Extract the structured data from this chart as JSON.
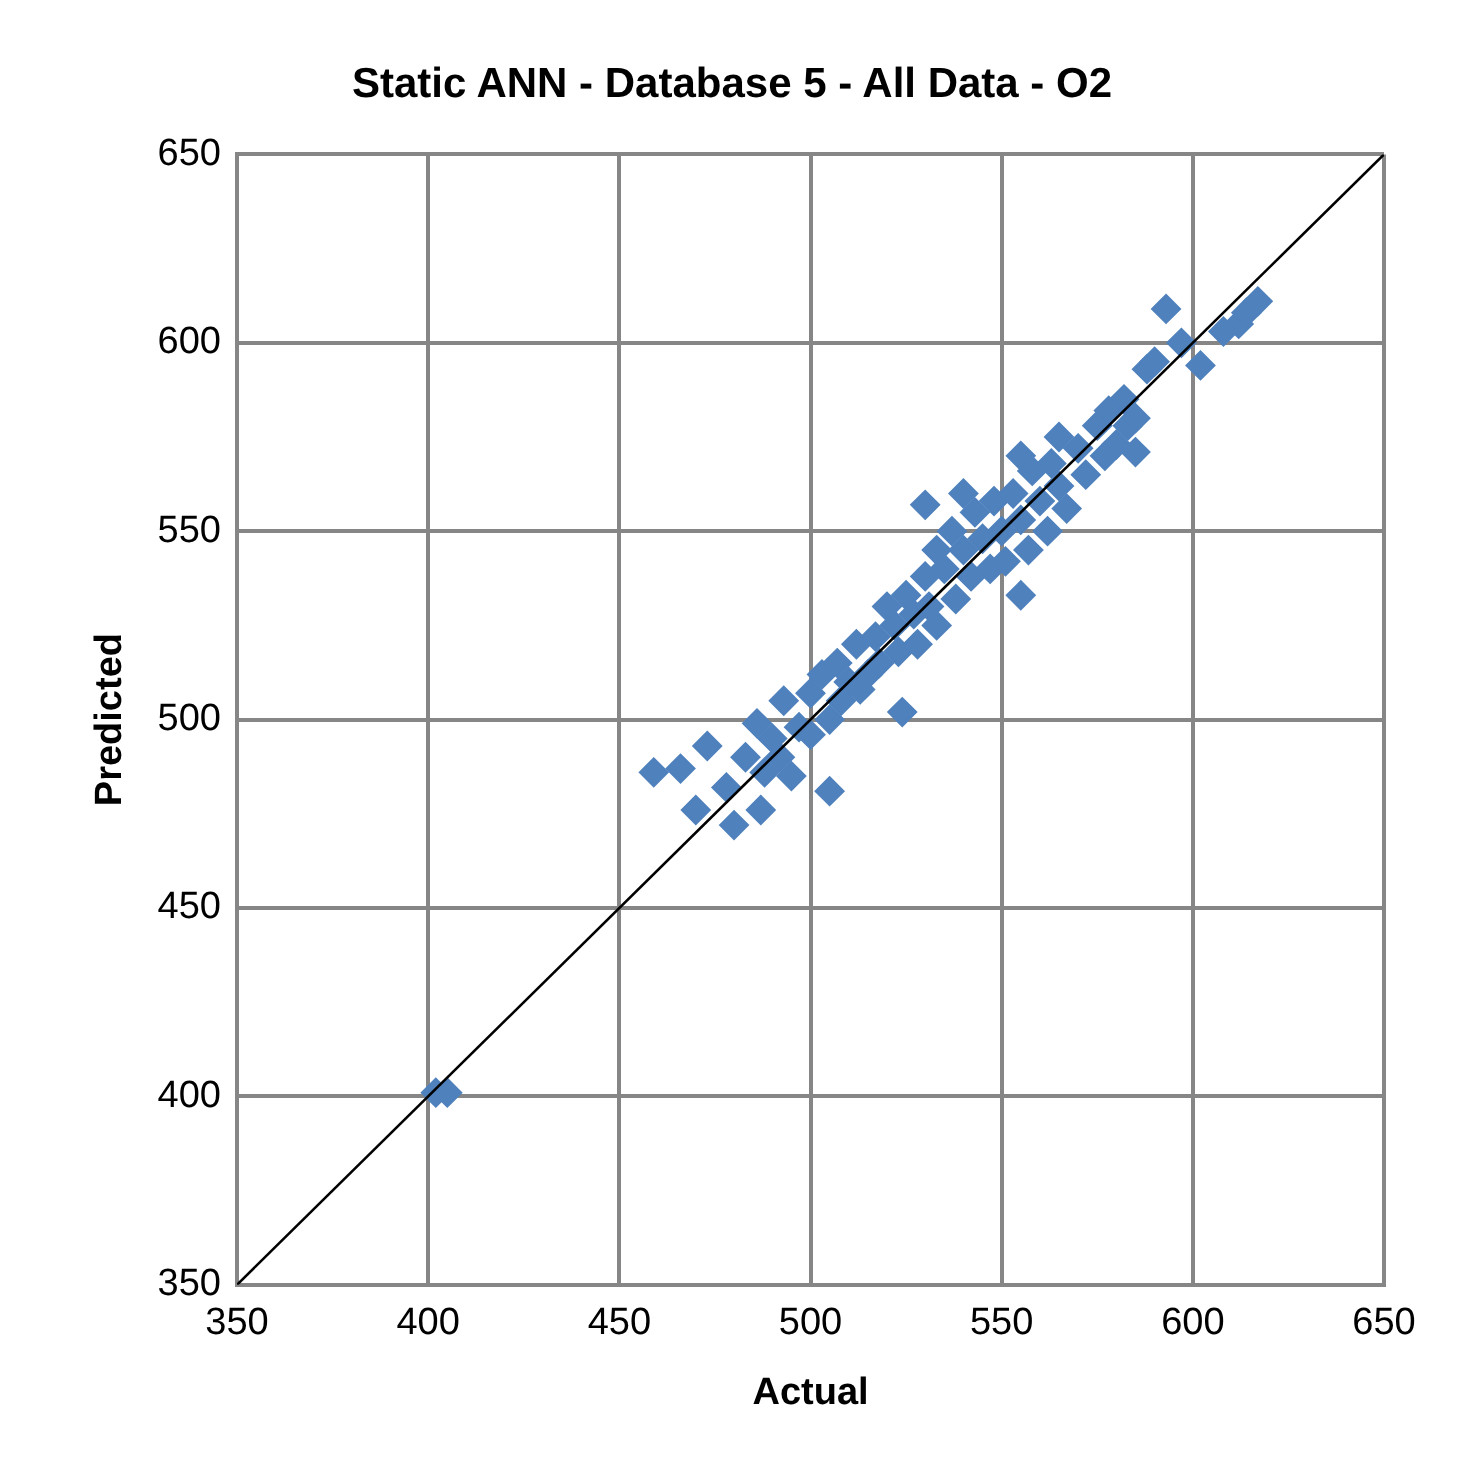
{
  "chart_data": {
    "type": "scatter",
    "title": "Static ANN - Database 5 - All Data - O2",
    "xlabel": "Actual",
    "ylabel": "Predicted",
    "xlim": [
      350,
      650
    ],
    "xticks": [
      350,
      400,
      450,
      500,
      550,
      600,
      650
    ],
    "ylim": [
      350,
      650
    ],
    "yticks": [
      350,
      400,
      450,
      500,
      550,
      600,
      650
    ],
    "grid": true,
    "legend": false,
    "marker": "diamond",
    "series": [
      {
        "color": "#4f81bd",
        "x": [
          402,
          405,
          459,
          466,
          470,
          473,
          478,
          480,
          486,
          487,
          493,
          495,
          505,
          510,
          524,
          530,
          540,
          555,
          555,
          565,
          580,
          588,
          593,
          597,
          602,
          612,
          617,
          483,
          488,
          490,
          492,
          497,
          500,
          500,
          503,
          505,
          507,
          508,
          512,
          513,
          515,
          517,
          518,
          520,
          522,
          523,
          525,
          527,
          528,
          530,
          531,
          533,
          533,
          535,
          537,
          538,
          540,
          542,
          543,
          545,
          547,
          548,
          550,
          551,
          553,
          555,
          557,
          558,
          560,
          562,
          563,
          565,
          567,
          570,
          572,
          575,
          577,
          578,
          582,
          583,
          585,
          585,
          590,
          608,
          614
        ],
        "values": [
          401,
          401,
          486,
          487,
          476,
          493,
          482,
          472,
          499,
          476,
          505,
          485,
          481,
          510,
          502,
          557,
          560,
          533,
          570,
          575,
          573,
          593,
          609,
          600,
          594,
          605,
          611,
          490,
          486,
          495,
          490,
          498,
          496,
          507,
          512,
          500,
          515,
          505,
          520,
          508,
          512,
          522,
          515,
          530,
          525,
          518,
          533,
          528,
          520,
          538,
          530,
          545,
          525,
          540,
          550,
          532,
          545,
          538,
          555,
          548,
          540,
          558,
          550,
          542,
          560,
          553,
          545,
          566,
          558,
          550,
          568,
          562,
          556,
          572,
          565,
          578,
          570,
          582,
          585,
          578,
          580,
          571,
          595,
          603,
          608
        ]
      },
      {
        "type": "line",
        "color": "#000000",
        "marker": "none",
        "x": [
          350,
          650
        ],
        "values": [
          350,
          650
        ]
      }
    ]
  }
}
